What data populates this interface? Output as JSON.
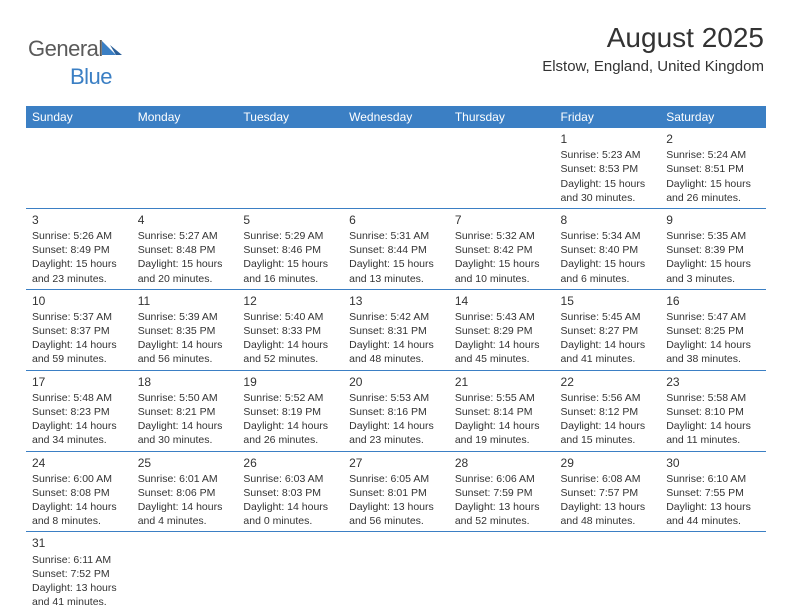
{
  "logo": {
    "text1": "General",
    "text2": "Blue"
  },
  "title": "August 2025",
  "subtitle": "Elstow, England, United Kingdom",
  "colors": {
    "header_bg": "#3b7fc4",
    "header_text": "#ffffff",
    "cell_border": "#3b7fc4",
    "body_text": "#333333",
    "logo_gray": "#5a5a5a",
    "logo_blue": "#3b7fc4"
  },
  "weekdays": [
    "Sunday",
    "Monday",
    "Tuesday",
    "Wednesday",
    "Thursday",
    "Friday",
    "Saturday"
  ],
  "weeks": [
    [
      null,
      null,
      null,
      null,
      null,
      {
        "n": "1",
        "sr": "Sunrise: 5:23 AM",
        "ss": "Sunset: 8:53 PM",
        "d1": "Daylight: 15 hours",
        "d2": "and 30 minutes."
      },
      {
        "n": "2",
        "sr": "Sunrise: 5:24 AM",
        "ss": "Sunset: 8:51 PM",
        "d1": "Daylight: 15 hours",
        "d2": "and 26 minutes."
      }
    ],
    [
      {
        "n": "3",
        "sr": "Sunrise: 5:26 AM",
        "ss": "Sunset: 8:49 PM",
        "d1": "Daylight: 15 hours",
        "d2": "and 23 minutes."
      },
      {
        "n": "4",
        "sr": "Sunrise: 5:27 AM",
        "ss": "Sunset: 8:48 PM",
        "d1": "Daylight: 15 hours",
        "d2": "and 20 minutes."
      },
      {
        "n": "5",
        "sr": "Sunrise: 5:29 AM",
        "ss": "Sunset: 8:46 PM",
        "d1": "Daylight: 15 hours",
        "d2": "and 16 minutes."
      },
      {
        "n": "6",
        "sr": "Sunrise: 5:31 AM",
        "ss": "Sunset: 8:44 PM",
        "d1": "Daylight: 15 hours",
        "d2": "and 13 minutes."
      },
      {
        "n": "7",
        "sr": "Sunrise: 5:32 AM",
        "ss": "Sunset: 8:42 PM",
        "d1": "Daylight: 15 hours",
        "d2": "and 10 minutes."
      },
      {
        "n": "8",
        "sr": "Sunrise: 5:34 AM",
        "ss": "Sunset: 8:40 PM",
        "d1": "Daylight: 15 hours",
        "d2": "and 6 minutes."
      },
      {
        "n": "9",
        "sr": "Sunrise: 5:35 AM",
        "ss": "Sunset: 8:39 PM",
        "d1": "Daylight: 15 hours",
        "d2": "and 3 minutes."
      }
    ],
    [
      {
        "n": "10",
        "sr": "Sunrise: 5:37 AM",
        "ss": "Sunset: 8:37 PM",
        "d1": "Daylight: 14 hours",
        "d2": "and 59 minutes."
      },
      {
        "n": "11",
        "sr": "Sunrise: 5:39 AM",
        "ss": "Sunset: 8:35 PM",
        "d1": "Daylight: 14 hours",
        "d2": "and 56 minutes."
      },
      {
        "n": "12",
        "sr": "Sunrise: 5:40 AM",
        "ss": "Sunset: 8:33 PM",
        "d1": "Daylight: 14 hours",
        "d2": "and 52 minutes."
      },
      {
        "n": "13",
        "sr": "Sunrise: 5:42 AM",
        "ss": "Sunset: 8:31 PM",
        "d1": "Daylight: 14 hours",
        "d2": "and 48 minutes."
      },
      {
        "n": "14",
        "sr": "Sunrise: 5:43 AM",
        "ss": "Sunset: 8:29 PM",
        "d1": "Daylight: 14 hours",
        "d2": "and 45 minutes."
      },
      {
        "n": "15",
        "sr": "Sunrise: 5:45 AM",
        "ss": "Sunset: 8:27 PM",
        "d1": "Daylight: 14 hours",
        "d2": "and 41 minutes."
      },
      {
        "n": "16",
        "sr": "Sunrise: 5:47 AM",
        "ss": "Sunset: 8:25 PM",
        "d1": "Daylight: 14 hours",
        "d2": "and 38 minutes."
      }
    ],
    [
      {
        "n": "17",
        "sr": "Sunrise: 5:48 AM",
        "ss": "Sunset: 8:23 PM",
        "d1": "Daylight: 14 hours",
        "d2": "and 34 minutes."
      },
      {
        "n": "18",
        "sr": "Sunrise: 5:50 AM",
        "ss": "Sunset: 8:21 PM",
        "d1": "Daylight: 14 hours",
        "d2": "and 30 minutes."
      },
      {
        "n": "19",
        "sr": "Sunrise: 5:52 AM",
        "ss": "Sunset: 8:19 PM",
        "d1": "Daylight: 14 hours",
        "d2": "and 26 minutes."
      },
      {
        "n": "20",
        "sr": "Sunrise: 5:53 AM",
        "ss": "Sunset: 8:16 PM",
        "d1": "Daylight: 14 hours",
        "d2": "and 23 minutes."
      },
      {
        "n": "21",
        "sr": "Sunrise: 5:55 AM",
        "ss": "Sunset: 8:14 PM",
        "d1": "Daylight: 14 hours",
        "d2": "and 19 minutes."
      },
      {
        "n": "22",
        "sr": "Sunrise: 5:56 AM",
        "ss": "Sunset: 8:12 PM",
        "d1": "Daylight: 14 hours",
        "d2": "and 15 minutes."
      },
      {
        "n": "23",
        "sr": "Sunrise: 5:58 AM",
        "ss": "Sunset: 8:10 PM",
        "d1": "Daylight: 14 hours",
        "d2": "and 11 minutes."
      }
    ],
    [
      {
        "n": "24",
        "sr": "Sunrise: 6:00 AM",
        "ss": "Sunset: 8:08 PM",
        "d1": "Daylight: 14 hours",
        "d2": "and 8 minutes."
      },
      {
        "n": "25",
        "sr": "Sunrise: 6:01 AM",
        "ss": "Sunset: 8:06 PM",
        "d1": "Daylight: 14 hours",
        "d2": "and 4 minutes."
      },
      {
        "n": "26",
        "sr": "Sunrise: 6:03 AM",
        "ss": "Sunset: 8:03 PM",
        "d1": "Daylight: 14 hours",
        "d2": "and 0 minutes."
      },
      {
        "n": "27",
        "sr": "Sunrise: 6:05 AM",
        "ss": "Sunset: 8:01 PM",
        "d1": "Daylight: 13 hours",
        "d2": "and 56 minutes."
      },
      {
        "n": "28",
        "sr": "Sunrise: 6:06 AM",
        "ss": "Sunset: 7:59 PM",
        "d1": "Daylight: 13 hours",
        "d2": "and 52 minutes."
      },
      {
        "n": "29",
        "sr": "Sunrise: 6:08 AM",
        "ss": "Sunset: 7:57 PM",
        "d1": "Daylight: 13 hours",
        "d2": "and 48 minutes."
      },
      {
        "n": "30",
        "sr": "Sunrise: 6:10 AM",
        "ss": "Sunset: 7:55 PM",
        "d1": "Daylight: 13 hours",
        "d2": "and 44 minutes."
      }
    ],
    [
      {
        "n": "31",
        "sr": "Sunrise: 6:11 AM",
        "ss": "Sunset: 7:52 PM",
        "d1": "Daylight: 13 hours",
        "d2": "and 41 minutes."
      },
      null,
      null,
      null,
      null,
      null,
      null
    ]
  ]
}
